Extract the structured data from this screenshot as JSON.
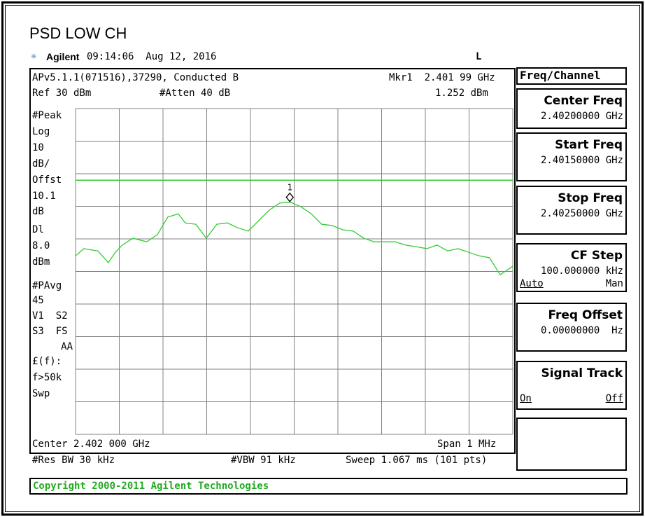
{
  "title": "PSD LOW CH",
  "header": {
    "brand": "Agilent",
    "time": "09:14:06  Aug 12, 2016",
    "mode": "L"
  },
  "info": {
    "line1_left": "APv5.1.1(071516),37290, Conducted B",
    "line1_right": "Mkr1  2.401 99 GHz",
    "ref": "Ref 30 dBm",
    "atten": "#Atten 40 dB",
    "marker_value": "1.252 dBm"
  },
  "left_labels": [
    "#Peak",
    "Log",
    "10",
    "dB/",
    "Offst",
    "10.1",
    "dB",
    "Dl",
    "8.0",
    "dBm",
    "#PAvg",
    "45",
    "V1  S2",
    "S3  FS",
    "AA",
    "£(f):",
    "f>50k",
    "Swp"
  ],
  "footer": {
    "center": "Center 2.402 000 GHz",
    "span": "Span 1 MHz",
    "rbw": "#Res BW 30 kHz",
    "vbw": "#VBW 91 kHz",
    "sweep": "Sweep 1.067 ms (101 pts)"
  },
  "copyright": "Copyright 2000-2011 Agilent Technologies",
  "softkeys": {
    "menu": "Freq/Channel",
    "keys": [
      {
        "label": "Center Freq",
        "value": "2.40200000 GHz"
      },
      {
        "label": "Start Freq",
        "value": "2.40150000 GHz"
      },
      {
        "label": "Stop Freq",
        "value": "2.40250000 GHz"
      },
      {
        "label": "CF Step",
        "value": "100.000000 kHz",
        "left": "Auto",
        "right": "Man"
      },
      {
        "label": "Freq Offset",
        "value": "0.00000000  Hz"
      },
      {
        "label": "Signal Track",
        "left": "On",
        "right": "Off"
      }
    ]
  },
  "plot": {
    "xlim": [
      2.4015,
      2.4025
    ],
    "ylim": [
      -70,
      30
    ],
    "grid_divisions": 10,
    "grid_color": "#808080",
    "trace_color": "#33cc33",
    "display_line": 8,
    "marker": {
      "label": "1",
      "x": 2.40199,
      "y": 1.252
    },
    "trace": {
      "x": [
        2.4015,
        2.401519,
        2.401551,
        2.401575,
        2.401591,
        2.401607,
        2.401631,
        2.401663,
        2.401687,
        2.401711,
        2.401735,
        2.401751,
        2.401775,
        2.401799,
        2.401823,
        2.401847,
        2.401871,
        2.401895,
        2.401919,
        2.401943,
        2.401967,
        2.401991,
        2.402015,
        2.402039,
        2.402063,
        2.402087,
        2.402111,
        2.402135,
        2.402159,
        2.402183,
        2.402207,
        2.402231,
        2.402255,
        2.402279,
        2.402303,
        2.402327,
        2.402351,
        2.402375,
        2.402399,
        2.402423,
        2.402447,
        2.402471,
        2.4025
      ],
      "values": [
        -15.2,
        -13.0,
        -13.7,
        -17.3,
        -14.1,
        -11.9,
        -9.8,
        -10.9,
        -8.7,
        -3.3,
        -2.3,
        -5.1,
        -5.5,
        -9.8,
        -5.5,
        -5.1,
        -6.6,
        -7.6,
        -4.4,
        -1.2,
        1.0,
        1.3,
        -0.1,
        -2.3,
        -5.5,
        -5.9,
        -7.2,
        -7.6,
        -9.8,
        -10.9,
        -10.9,
        -10.9,
        -11.9,
        -12.4,
        -13.0,
        -11.9,
        -13.7,
        -13.0,
        -14.1,
        -15.2,
        -15.8,
        -21.0,
        -18.4
      ]
    }
  }
}
